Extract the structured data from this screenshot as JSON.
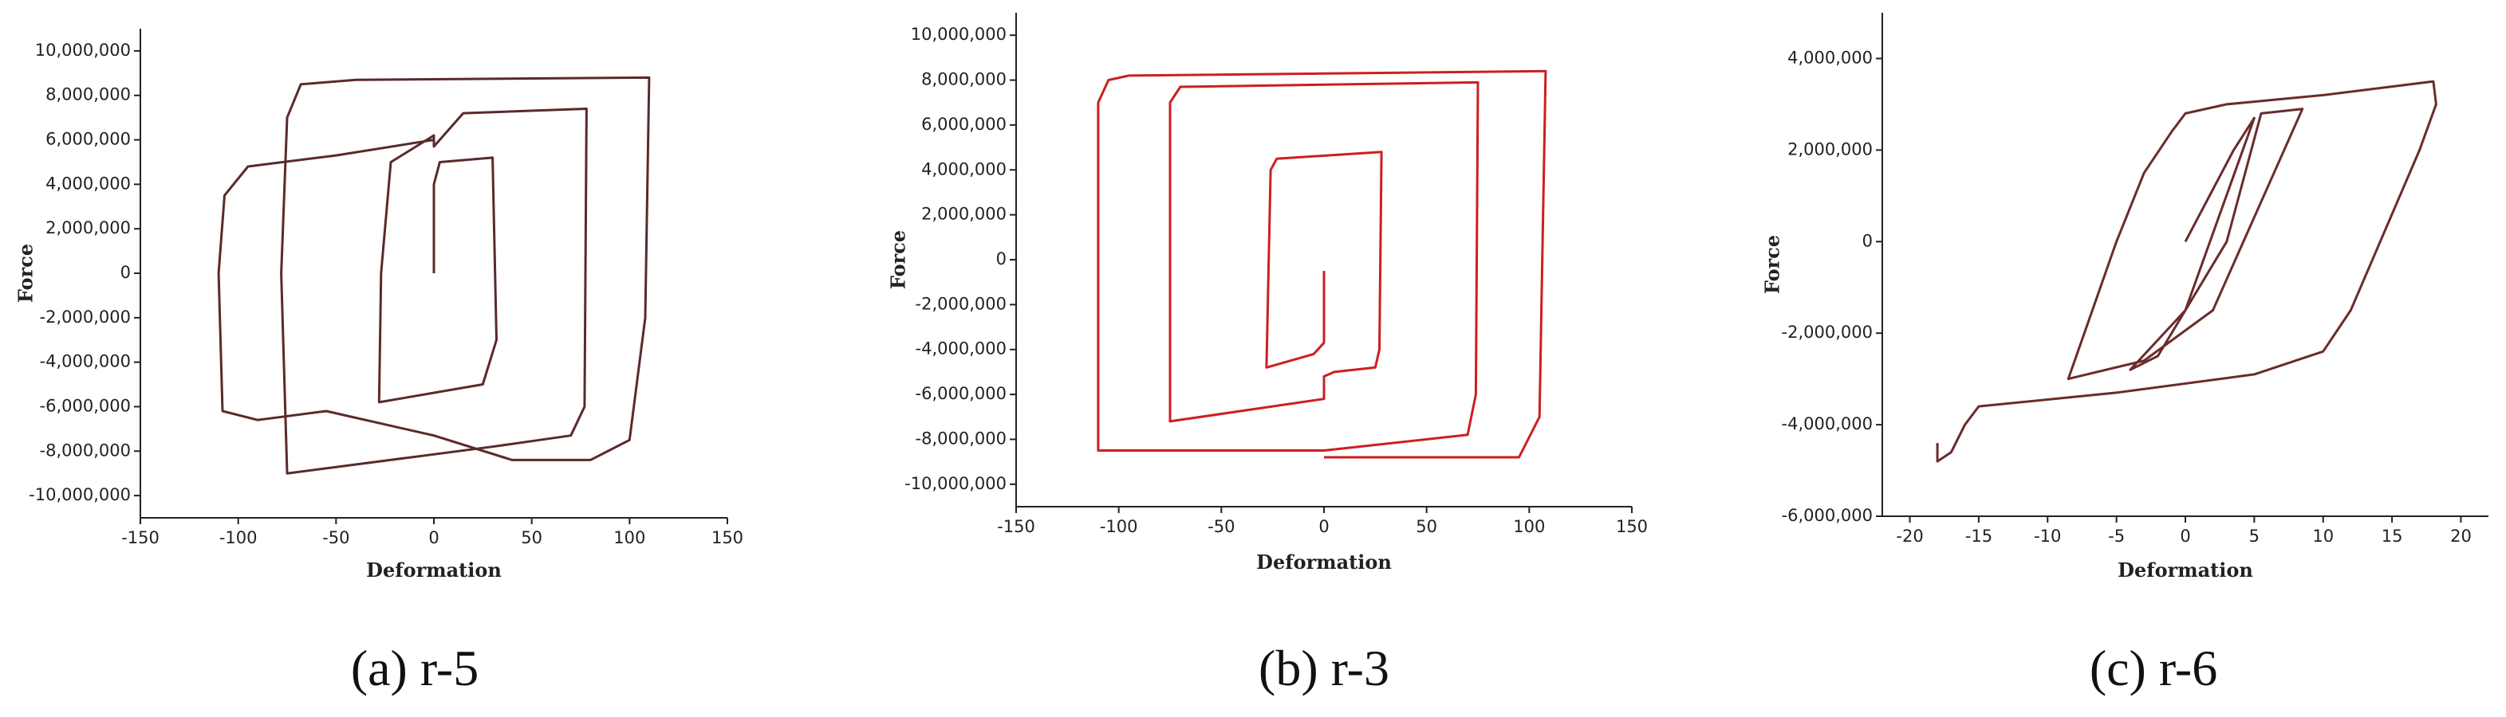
{
  "chart_data": [
    {
      "type": "line",
      "caption": "(a) r-5",
      "xlabel": "Deformation",
      "ylabel": "Force",
      "color": "#5a2a2a",
      "xlim": [
        -150,
        150
      ],
      "xticks": [
        -150,
        -100,
        -50,
        0,
        50,
        100,
        150
      ],
      "ylim": [
        -11000000,
        11000000
      ],
      "yticks": [
        {
          "value": -10000000,
          "label": "-10,000,000"
        },
        {
          "value": -8000000,
          "label": "-8,000,000"
        },
        {
          "value": -6000000,
          "label": "-6,000,000"
        },
        {
          "value": -4000000,
          "label": "-4,000,000"
        },
        {
          "value": -2000000,
          "label": "-2,000,000"
        },
        0,
        {
          "value": 2000000,
          "label": "2,000,000"
        },
        {
          "value": 4000000,
          "label": "4,000,000"
        },
        {
          "value": 6000000,
          "label": "6,000,000"
        },
        {
          "value": 8000000,
          "label": "8,000,000"
        },
        {
          "value": 10000000,
          "label": "10,000,000"
        }
      ],
      "x": [
        0,
        0,
        3,
        30,
        32,
        25,
        -28,
        -27,
        -22,
        0,
        0,
        15,
        78,
        77,
        70,
        30,
        -75,
        -78,
        -75,
        -68,
        -40,
        110,
        108,
        100,
        80,
        40,
        0,
        -55,
        -90,
        -108,
        -110,
        -107,
        -95,
        -50,
        0
      ],
      "values": [
        0,
        4000000,
        5000000,
        5200000,
        -3000000,
        -5000000,
        -5800000,
        0,
        5000000,
        6200000,
        5700000,
        7200000,
        7400000,
        -6000000,
        -7300000,
        -7800000,
        -9000000,
        0,
        7000000,
        8500000,
        8700000,
        8800000,
        -2000000,
        -7500000,
        -8400000,
        -8400000,
        -7300000,
        -6200000,
        -6600000,
        -6200000,
        0,
        3500000,
        4800000,
        5300000,
        6000000
      ]
    },
    {
      "type": "line",
      "caption": "(b) r-3",
      "xlabel": "Deformation",
      "ylabel": "Force",
      "color": "#cc1f1f",
      "xlim": [
        -150,
        150
      ],
      "xticks": [
        -150,
        -100,
        -50,
        0,
        50,
        100,
        150
      ],
      "ylim": [
        -11000000,
        11000000
      ],
      "yticks": [
        {
          "value": -10000000,
          "label": "-10,000,000"
        },
        {
          "value": -8000000,
          "label": "-8,000,000"
        },
        {
          "value": -6000000,
          "label": "-6,000,000"
        },
        {
          "value": -4000000,
          "label": "-4,000,000"
        },
        {
          "value": -2000000,
          "label": "-2,000,000"
        },
        0,
        {
          "value": 2000000,
          "label": "2,000,000"
        },
        {
          "value": 4000000,
          "label": "4,000,000"
        },
        {
          "value": 6000000,
          "label": "6,000,000"
        },
        {
          "value": 8000000,
          "label": "8,000,000"
        },
        {
          "value": 10000000,
          "label": "10,000,000"
        }
      ],
      "x": [
        0,
        0,
        -5,
        -28,
        -26,
        -23,
        28,
        27,
        25,
        5,
        0,
        0,
        -75,
        -75,
        -70,
        75,
        74,
        70,
        0,
        -110,
        -110,
        -105,
        -95,
        108,
        105,
        95,
        0
      ],
      "values": [
        -500000,
        -3700000,
        -4200000,
        -4800000,
        4000000,
        4500000,
        4800000,
        -4000000,
        -4800000,
        -5000000,
        -5200000,
        -6200000,
        -7200000,
        7000000,
        7700000,
        7900000,
        -6000000,
        -7800000,
        -8500000,
        -8500000,
        7000000,
        8000000,
        8200000,
        8400000,
        -7000000,
        -8800000,
        -8800000
      ]
    },
    {
      "type": "line",
      "caption": "(c) r-6",
      "xlabel": "Deformation",
      "ylabel": "Force",
      "color": "#6b2b2b",
      "xlim": [
        -22,
        22
      ],
      "xticks": [
        -20,
        -15,
        -10,
        -5,
        0,
        5,
        10,
        15,
        20
      ],
      "ylim": [
        -6000000,
        5000000
      ],
      "yticks": [
        {
          "value": -6000000,
          "label": "-6,000,000"
        },
        {
          "value": -4000000,
          "label": "-4,000,000"
        },
        {
          "value": -2000000,
          "label": "-2,000,000"
        },
        0,
        {
          "value": 2000000,
          "label": "2,000,000"
        },
        {
          "value": 4000000,
          "label": "4,000,000"
        }
      ],
      "x": [
        0,
        3.5,
        5,
        0,
        -4,
        -2,
        3,
        5.5,
        8.5,
        2,
        -3,
        -8.5,
        -5,
        -3,
        -1,
        -0.5,
        0,
        3,
        10,
        18,
        18.2,
        17,
        12,
        10,
        5,
        -5,
        -15,
        -16,
        -17,
        -18,
        -18
      ],
      "values": [
        0,
        2000000,
        2700000,
        -1500000,
        -2800000,
        -2500000,
        0,
        2800000,
        2900000,
        -1500000,
        -2600000,
        -3000000,
        0,
        1500000,
        2400000,
        2600000,
        2800000,
        3000000,
        3200000,
        3500000,
        3000000,
        2000000,
        -1500000,
        -2400000,
        -2900000,
        -3300000,
        -3600000,
        -4000000,
        -4600000,
        -4800000,
        -4400000
      ]
    }
  ]
}
